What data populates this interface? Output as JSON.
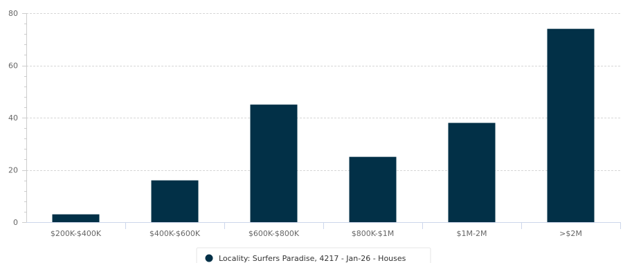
{
  "chart_data": {
    "type": "bar",
    "categories": [
      "$200K-$400K",
      "$400K-$600K",
      "$600K-$800K",
      "$800K-$1M",
      "$1M-2M",
      ">$2M"
    ],
    "series": [
      {
        "name": "Locality: Surfers Paradise, 4217 - Jan-26 - Houses",
        "values": [
          3,
          16,
          45,
          25,
          38,
          74
        ],
        "color": "#023047"
      }
    ],
    "ylim": [
      0,
      80
    ],
    "yticks": [
      0,
      20,
      40,
      60,
      80
    ],
    "grid": true,
    "legend_position": "bottom-center"
  }
}
